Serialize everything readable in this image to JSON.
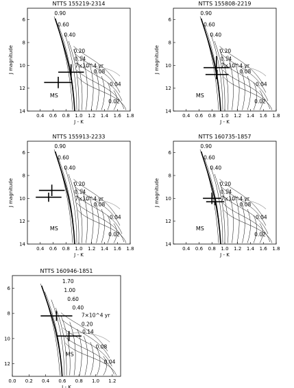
{
  "figure": {
    "panels_count": 5
  },
  "chart_data": [
    {
      "type": "line",
      "title": "NTTS 155219-2314",
      "xlabel": "J - K",
      "ylabel": "J magnitude",
      "xlim": [
        0.2,
        1.8
      ],
      "ylim": [
        14,
        5
      ],
      "x_ticks": [
        "0.4",
        "0.6",
        "0.8",
        "1.0",
        "1.2",
        "1.4",
        "1.6",
        "1.8"
      ],
      "y_ticks": [
        "6",
        "8",
        "10",
        "12",
        "14"
      ],
      "mass_labels": [
        {
          "text": "0.90",
          "x": 0.62,
          "y": 5.6
        },
        {
          "text": "0.60",
          "x": 0.67,
          "y": 6.6
        },
        {
          "text": "0.40",
          "x": 0.77,
          "y": 7.5
        },
        {
          "text": "0.20",
          "x": 0.92,
          "y": 8.9
        },
        {
          "text": "0.14",
          "x": 0.93,
          "y": 9.6
        },
        {
          "text": "0.08",
          "x": 1.23,
          "y": 10.7
        },
        {
          "text": "0.04",
          "x": 1.48,
          "y": 11.8
        },
        {
          "text": "0.02",
          "x": 1.46,
          "y": 13.3
        }
      ],
      "age_label": {
        "text": "7×10^4 yr",
        "x": 0.94,
        "y": 10.2
      },
      "ms_label": {
        "text": "MS",
        "x": 0.55,
        "y": 12.8
      },
      "stars": [
        {
          "x": 0.88,
          "y": 10.6,
          "xerr": 0.2,
          "yerr": 0.7
        },
        {
          "x": 0.68,
          "y": 11.5,
          "xerr": 0.22,
          "yerr": 0.5
        }
      ]
    },
    {
      "type": "line",
      "title": "NTTS 155808-2219",
      "xlabel": "J - K",
      "ylabel": "J magnitude",
      "xlim": [
        0.2,
        1.8
      ],
      "ylim": [
        14,
        5
      ],
      "x_ticks": [
        "0.4",
        "0.6",
        "0.8",
        "1.0",
        "1.2",
        "1.4",
        "1.6",
        "1.8"
      ],
      "y_ticks": [
        "6",
        "8",
        "10",
        "12",
        "14"
      ],
      "mass_labels": [
        {
          "text": "0.90",
          "x": 0.62,
          "y": 5.6
        },
        {
          "text": "0.60",
          "x": 0.67,
          "y": 6.6
        },
        {
          "text": "0.40",
          "x": 0.77,
          "y": 7.5
        },
        {
          "text": "0.20",
          "x": 0.92,
          "y": 8.9
        },
        {
          "text": "0.14",
          "x": 0.93,
          "y": 9.6
        },
        {
          "text": "0.08",
          "x": 1.23,
          "y": 10.7
        },
        {
          "text": "0.04",
          "x": 1.48,
          "y": 11.8
        },
        {
          "text": "0.02",
          "x": 1.46,
          "y": 13.3
        }
      ],
      "age_label": {
        "text": "7×10^4 yr",
        "x": 0.94,
        "y": 10.2
      },
      "ms_label": {
        "text": "MS",
        "x": 0.55,
        "y": 12.8
      },
      "stars": [
        {
          "x": 0.87,
          "y": 10.2,
          "xerr": 0.2,
          "yerr": 1.0
        },
        {
          "x": 0.88,
          "y": 10.8,
          "xerr": 0.18,
          "yerr": 0.4
        }
      ]
    },
    {
      "type": "line",
      "title": "NTTS 155913-2233",
      "xlabel": "J - K",
      "ylabel": "J magnitude",
      "xlim": [
        0.2,
        1.8
      ],
      "ylim": [
        14,
        5
      ],
      "x_ticks": [
        "0.4",
        "0.6",
        "0.8",
        "1.0",
        "1.2",
        "1.4",
        "1.6",
        "1.8"
      ],
      "y_ticks": [
        "6",
        "8",
        "10",
        "12",
        "14"
      ],
      "mass_labels": [
        {
          "text": "0.90",
          "x": 0.62,
          "y": 5.6
        },
        {
          "text": "0.60",
          "x": 0.67,
          "y": 6.6
        },
        {
          "text": "0.40",
          "x": 0.77,
          "y": 7.5
        },
        {
          "text": "0.20",
          "x": 0.92,
          "y": 8.9
        },
        {
          "text": "0.14",
          "x": 0.93,
          "y": 9.6
        },
        {
          "text": "0.08",
          "x": 1.23,
          "y": 10.7
        },
        {
          "text": "0.04",
          "x": 1.48,
          "y": 11.8
        },
        {
          "text": "0.02",
          "x": 1.46,
          "y": 13.3
        }
      ],
      "age_label": {
        "text": "7×10^4 yr",
        "x": 0.94,
        "y": 10.2
      },
      "ms_label": {
        "text": "MS",
        "x": 0.55,
        "y": 12.8
      },
      "stars": [
        {
          "x": 0.58,
          "y": 9.3,
          "xerr": 0.2,
          "yerr": 0.5
        },
        {
          "x": 0.53,
          "y": 9.9,
          "xerr": 0.2,
          "yerr": 0.4
        }
      ]
    },
    {
      "type": "line",
      "title": "NTTS 160735-1857",
      "xlabel": "J - K",
      "ylabel": "J magnitude",
      "xlim": [
        0.2,
        1.8
      ],
      "ylim": [
        14,
        5
      ],
      "x_ticks": [
        "0.4",
        "0.6",
        "0.8",
        "1.0",
        "1.2",
        "1.4",
        "1.6",
        "1.8"
      ],
      "y_ticks": [
        "6",
        "8",
        "10",
        "12",
        "14"
      ],
      "mass_labels": [
        {
          "text": "0.90",
          "x": 0.62,
          "y": 5.6
        },
        {
          "text": "0.60",
          "x": 0.67,
          "y": 6.6
        },
        {
          "text": "0.40",
          "x": 0.77,
          "y": 7.5
        },
        {
          "text": "0.20",
          "x": 0.92,
          "y": 8.9
        },
        {
          "text": "0.14",
          "x": 0.93,
          "y": 9.6
        },
        {
          "text": "0.08",
          "x": 1.23,
          "y": 10.7
        },
        {
          "text": "0.04",
          "x": 1.48,
          "y": 11.8
        },
        {
          "text": "0.02",
          "x": 1.46,
          "y": 13.3
        }
      ],
      "age_label": {
        "text": "7×10^4 yr",
        "x": 0.94,
        "y": 10.2
      },
      "ms_label": {
        "text": "MS",
        "x": 0.55,
        "y": 12.8
      },
      "stars": [
        {
          "x": 0.8,
          "y": 10.0,
          "xerr": 0.14,
          "yerr": 0.5
        },
        {
          "x": 0.85,
          "y": 10.3,
          "xerr": 0.14,
          "yerr": 0.3
        }
      ]
    },
    {
      "type": "line",
      "title": "NTTS 160946-1851",
      "xlabel": "J - K",
      "ylabel": "J magnitude",
      "xlim": [
        0.0,
        1.3
      ],
      "ylim": [
        13,
        5
      ],
      "x_ticks": [
        "0.0",
        "0.2",
        "0.4",
        "0.6",
        "0.8",
        "1.0",
        "1.2"
      ],
      "y_ticks": [
        "6",
        "8",
        "10",
        "12"
      ],
      "mass_labels": [
        {
          "text": "1.70",
          "x": 0.6,
          "y": 5.6
        },
        {
          "text": "1.00",
          "x": 0.62,
          "y": 6.3
        },
        {
          "text": "0.60",
          "x": 0.66,
          "y": 7.0
        },
        {
          "text": "0.40",
          "x": 0.72,
          "y": 7.7
        },
        {
          "text": "0.20",
          "x": 0.83,
          "y": 9.0
        },
        {
          "text": "0.14",
          "x": 0.84,
          "y": 9.6
        },
        {
          "text": "0.08",
          "x": 1.0,
          "y": 10.8
        },
        {
          "text": "0.04",
          "x": 1.1,
          "y": 12.0
        }
      ],
      "age_label": {
        "text": "7×10^4 yr",
        "x": 0.83,
        "y": 8.3
      },
      "ms_label": {
        "text": "MS",
        "x": 0.64,
        "y": 11.4
      },
      "stars": [
        {
          "x": 0.53,
          "y": 8.2,
          "xerr": 0.19,
          "yerr": 0.4
        },
        {
          "x": 0.68,
          "y": 9.8,
          "xerr": 0.15,
          "yerr": 0.4
        }
      ]
    }
  ]
}
